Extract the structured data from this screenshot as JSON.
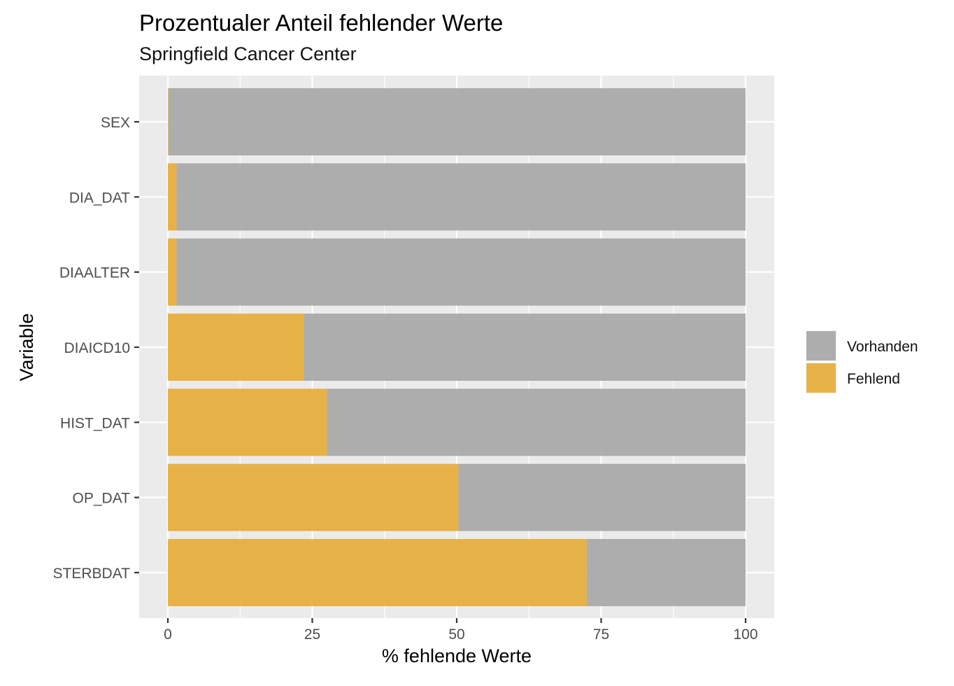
{
  "chart_data": {
    "type": "bar",
    "orientation": "horizontal",
    "stacked": true,
    "title": "Prozentualer Anteil fehlender Werte",
    "subtitle": "Springfield Cancer Center",
    "xlabel": "% fehlende Werte",
    "ylabel": "Variable",
    "xlim": [
      0,
      100
    ],
    "xticks": [
      0,
      25,
      50,
      75,
      100
    ],
    "grid": true,
    "legend_position": "right",
    "categories": [
      "SEX",
      "DIA_DAT",
      "DIAALTER",
      "DIAICD10",
      "HIST_DAT",
      "OP_DAT",
      "STERBDAT"
    ],
    "series": [
      {
        "name": "Fehlend",
        "color": "#E6AF3E",
        "values": [
          0.1,
          1.5,
          1.5,
          23.5,
          27.5,
          50.3,
          72.5
        ]
      },
      {
        "name": "Vorhanden",
        "color": "#AAAAAA",
        "values": [
          99.9,
          98.5,
          98.5,
          76.5,
          72.5,
          49.7,
          27.5
        ]
      }
    ],
    "legend_order": [
      "Vorhanden",
      "Fehlend"
    ]
  }
}
